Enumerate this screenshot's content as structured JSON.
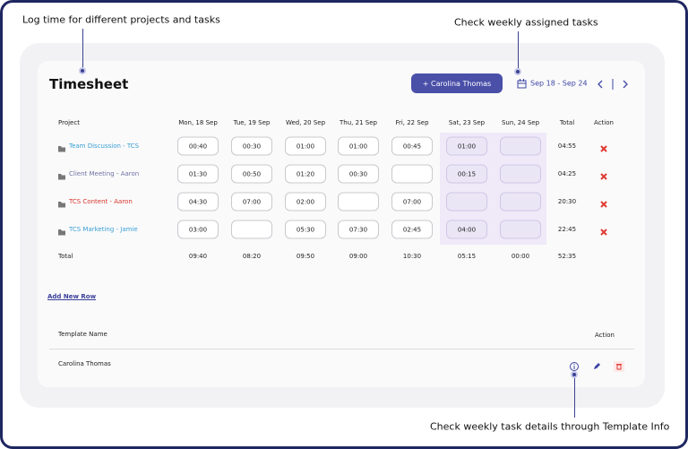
{
  "annotations": {
    "log_time": "Log time for different projects and tasks",
    "weekly_tasks": "Check weekly assigned tasks",
    "template_info": "Check weekly task details through Template Info"
  },
  "header": {
    "title": "Timesheet",
    "button": "+ Carolina Thomas",
    "date_range": "Sep 18 - Sep 24"
  },
  "timesheet": {
    "columns": [
      "Project",
      "Mon, 18 Sep",
      "Tue, 19 Sep",
      "Wed, 20 Sep",
      "Thu, 21 Sep",
      "Fri, 22 Sep",
      "Sat, 23 Sep",
      "Sun, 24 Sep",
      "Total",
      "Action"
    ],
    "rows": [
      {
        "project": "Team Discussion - TCS",
        "color": "#3a9fd6",
        "hours": [
          "00:40",
          "00:30",
          "01:00",
          "01:00",
          "00:45",
          "01:00",
          null
        ],
        "total": "04:55"
      },
      {
        "project": "Client Meeting - Aaron",
        "color": "#6f72a6",
        "hours": [
          "01:30",
          "00:50",
          "01:20",
          "00:30",
          null,
          "00:15",
          null
        ],
        "total": "04:25"
      },
      {
        "project": "TCS Content - Aaron",
        "color": "#d8332b",
        "hours": [
          "04:30",
          "07:00",
          "02:00",
          null,
          "07:00",
          null,
          null
        ],
        "total": "20:30"
      },
      {
        "project": "TCS Marketing - Jamie",
        "color": "#3a9fd6",
        "hours": [
          "03:00",
          null,
          "05:30",
          "07:30",
          "02:45",
          "04:00",
          null
        ],
        "total": "22:45"
      }
    ],
    "footer": {
      "label": "Total",
      "hours": [
        "09:40",
        "08:20",
        "09:50",
        "09:00",
        "10:30",
        "05:15",
        "00:00"
      ],
      "total": "52:35"
    }
  },
  "add_row": "Add New Row",
  "templates": {
    "columns": [
      "Template Name",
      "Action"
    ],
    "rows": [
      "Carolina Thomas"
    ]
  }
}
